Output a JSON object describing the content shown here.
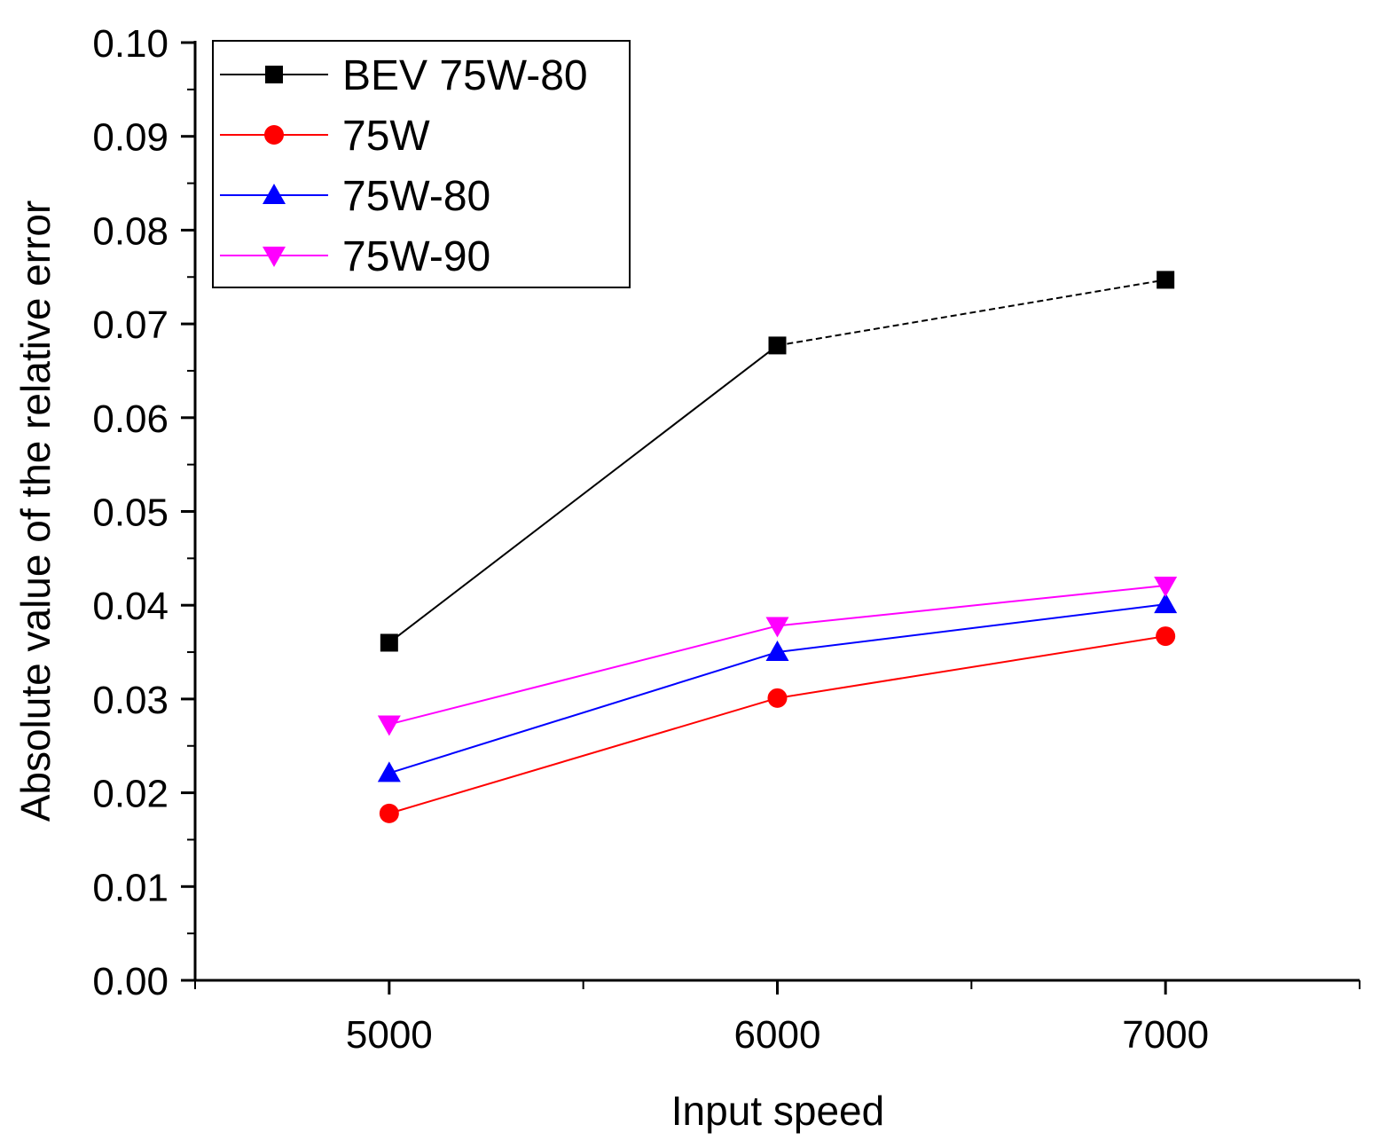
{
  "chart_data": {
    "type": "line",
    "title": "",
    "xlabel": "Input speed",
    "ylabel": "Absolute value of the relative error",
    "x": [
      5000,
      6000,
      7000
    ],
    "xlim": [
      4500,
      7500
    ],
    "ylim": [
      0,
      0.1
    ],
    "xticks": [
      5000,
      6000,
      7000
    ],
    "xtick_labels": [
      "5000",
      "6000",
      "7000"
    ],
    "yticks": [
      0,
      0.01,
      0.02,
      0.03,
      0.04,
      0.05,
      0.06,
      0.07,
      0.08,
      0.09,
      0.1
    ],
    "ytick_labels": [
      "0.00",
      "0.01",
      "0.02",
      "0.03",
      "0.04",
      "0.05",
      "0.06",
      "0.07",
      "0.08",
      "0.09",
      "0.10"
    ],
    "legend_position": "top-left",
    "grid": false,
    "series": [
      {
        "name": "BEV 75W-80",
        "values": [
          0.036,
          0.0677,
          0.0747
        ],
        "color": "#000000",
        "marker": "square",
        "line": "dashed-after-first"
      },
      {
        "name": "75W",
        "values": [
          0.0178,
          0.0301,
          0.0367
        ],
        "color": "#ff0000",
        "marker": "circle",
        "line": "solid"
      },
      {
        "name": "75W-80",
        "values": [
          0.0221,
          0.035,
          0.0401
        ],
        "color": "#0000ff",
        "marker": "triangle-up",
        "line": "solid"
      },
      {
        "name": "75W-90",
        "values": [
          0.0273,
          0.0378,
          0.0421
        ],
        "color": "#ff00ff",
        "marker": "triangle-down",
        "line": "solid"
      }
    ]
  }
}
